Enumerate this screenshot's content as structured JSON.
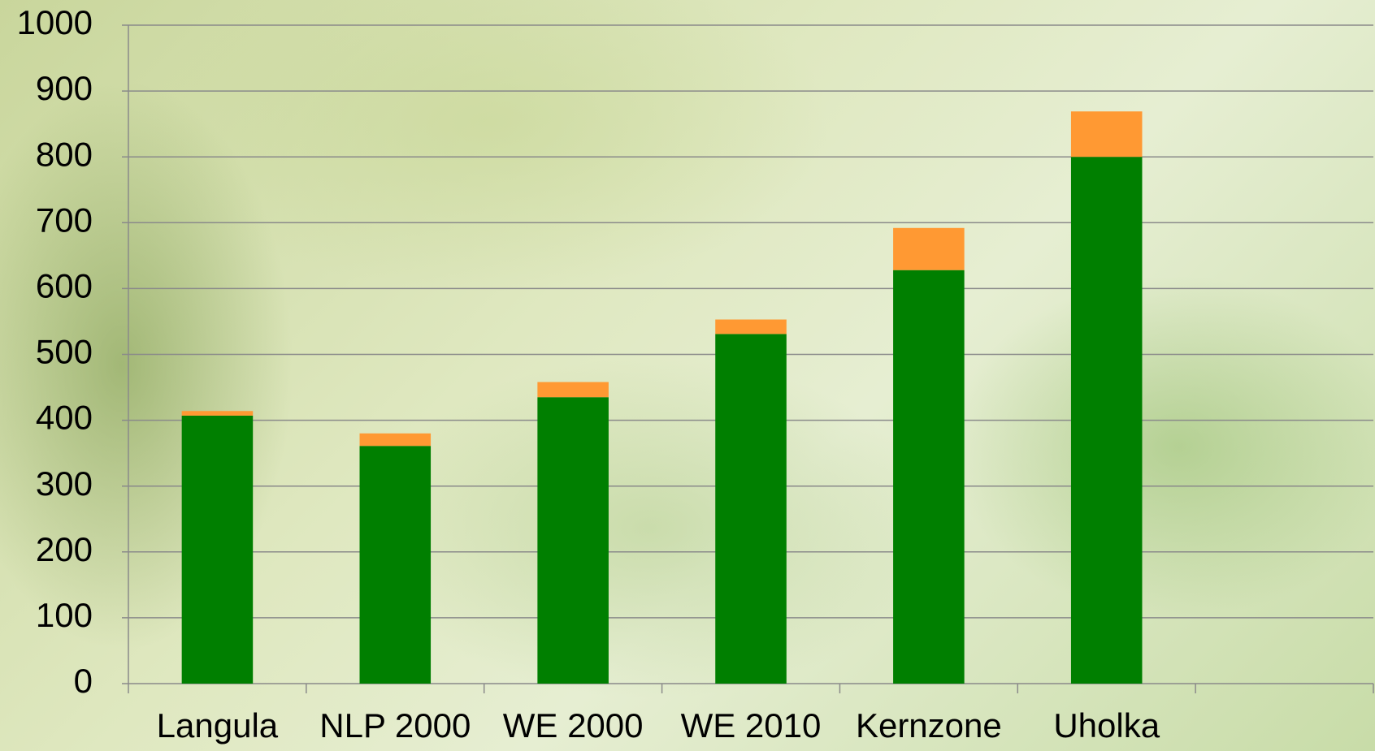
{
  "chart_data": {
    "type": "stacked_bar",
    "categories": [
      "Langula",
      "NLP 2000",
      "WE 2000",
      "WE 2010",
      "Kernzone",
      "Uholka",
      null
    ],
    "series": [
      {
        "color": "#007f00",
        "values": [
          407,
          361,
          435,
          531,
          628,
          800,
          null
        ]
      },
      {
        "color": "#ff9933",
        "values": [
          7,
          19,
          23,
          22,
          64,
          69,
          null
        ]
      }
    ],
    "ylim": [
      0,
      1000
    ],
    "yticks": [
      0,
      100,
      200,
      300,
      400,
      500,
      600,
      700,
      800,
      900,
      1000
    ],
    "grid": true
  }
}
